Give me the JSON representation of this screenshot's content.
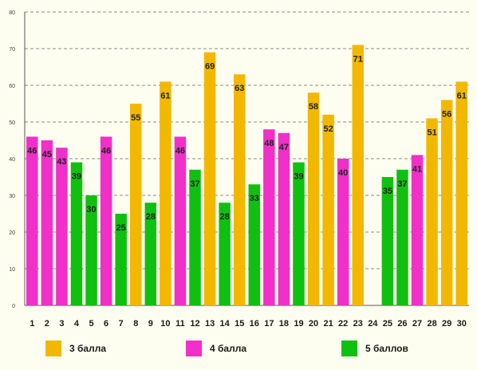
{
  "chart_data": {
    "type": "bar",
    "title": "",
    "xlabel": "",
    "ylabel": "",
    "categories": [
      "1",
      "2",
      "3",
      "4",
      "5",
      "6",
      "7",
      "8",
      "9",
      "10",
      "11",
      "12",
      "13",
      "14",
      "15",
      "16",
      "17",
      "18",
      "19",
      "20",
      "21",
      "22",
      "23",
      "24",
      "25",
      "26",
      "27",
      "28",
      "29",
      "30"
    ],
    "values": [
      46,
      45,
      43,
      39,
      30,
      46,
      25,
      55,
      28,
      61,
      46,
      37,
      69,
      28,
      63,
      33,
      48,
      47,
      39,
      58,
      52,
      40,
      71,
      null,
      35,
      37,
      41,
      51,
      56,
      61
    ],
    "groups": [
      "4 балла",
      "4 балла",
      "4 балла",
      "5 баллов",
      "5 баллов",
      "4 балла",
      "5 баллов",
      "3 балла",
      "5 баллов",
      "3 балла",
      "4 балла",
      "5 баллов",
      "3 балла",
      "5 баллов",
      "3 балла",
      "5 баллов",
      "4 балла",
      "4 балла",
      "5 баллов",
      "3 балла",
      "3 балла",
      "4 балла",
      "3 балла",
      null,
      "5 баллов",
      "5 баллов",
      "4 балла",
      "3 балла",
      "3 балла",
      "3 балла"
    ],
    "ylim": [
      0,
      80
    ],
    "yticks": [
      0,
      10,
      20,
      30,
      40,
      50,
      60,
      70,
      80
    ],
    "grid": true,
    "legend_position": "bottom",
    "legend": [
      {
        "name": "3 балла",
        "color": "#f2b800"
      },
      {
        "name": "4 балла",
        "color": "#f030c8"
      },
      {
        "name": "5 баллов",
        "color": "#10c010"
      }
    ]
  }
}
